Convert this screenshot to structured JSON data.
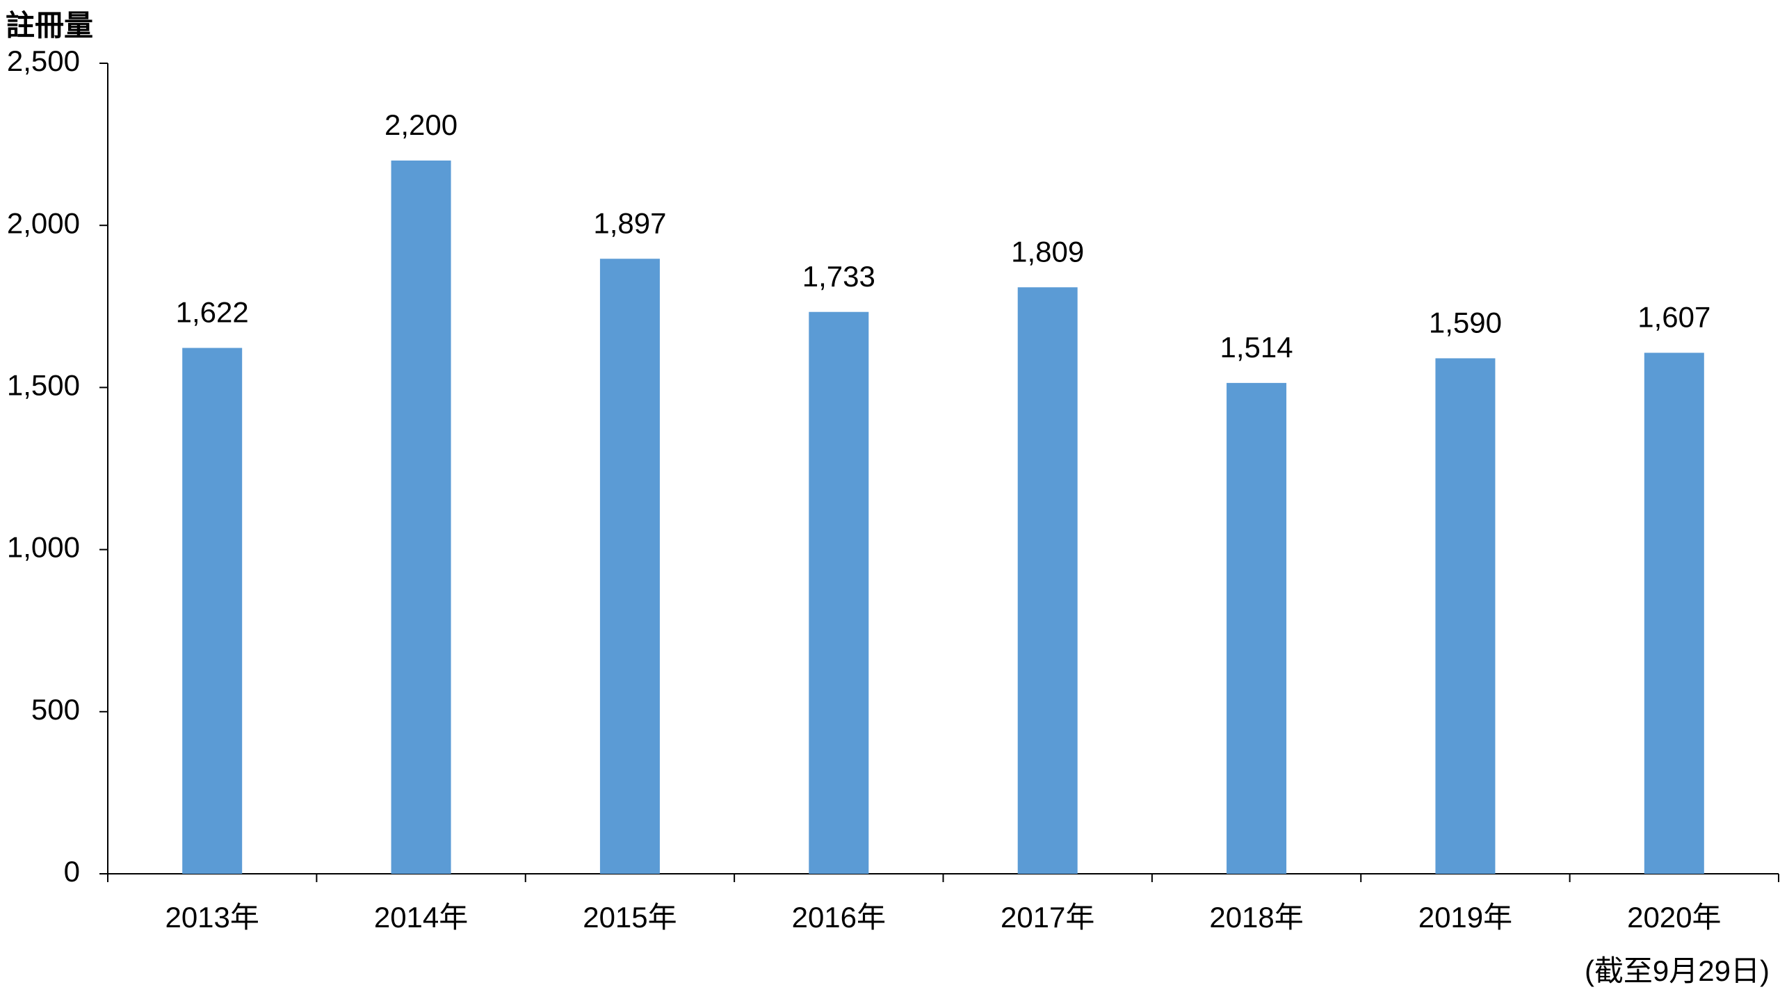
{
  "chart_data": {
    "type": "bar",
    "y_label": "註冊量",
    "annotation": "(截至9月29日)",
    "categories": [
      "2013年",
      "2014年",
      "2015年",
      "2016年",
      "2017年",
      "2018年",
      "2019年",
      "2020年"
    ],
    "values": [
      1622,
      2200,
      1897,
      1733,
      1809,
      1514,
      1590,
      1607
    ],
    "value_labels": [
      "1,622",
      "2,200",
      "1,897",
      "1,733",
      "1,809",
      "1,514",
      "1,590",
      "1,607"
    ],
    "color": "#5b9bd5",
    "ylim": [
      0,
      2500
    ],
    "yticks": [
      0,
      500,
      {
        "value": 1000,
        "label": "1,000"
      },
      {
        "value": 1500,
        "label": "1,500"
      },
      {
        "value": 2000,
        "label": "2,000"
      },
      {
        "value": 2500,
        "label": "2,500"
      }
    ],
    "grid": false
  }
}
